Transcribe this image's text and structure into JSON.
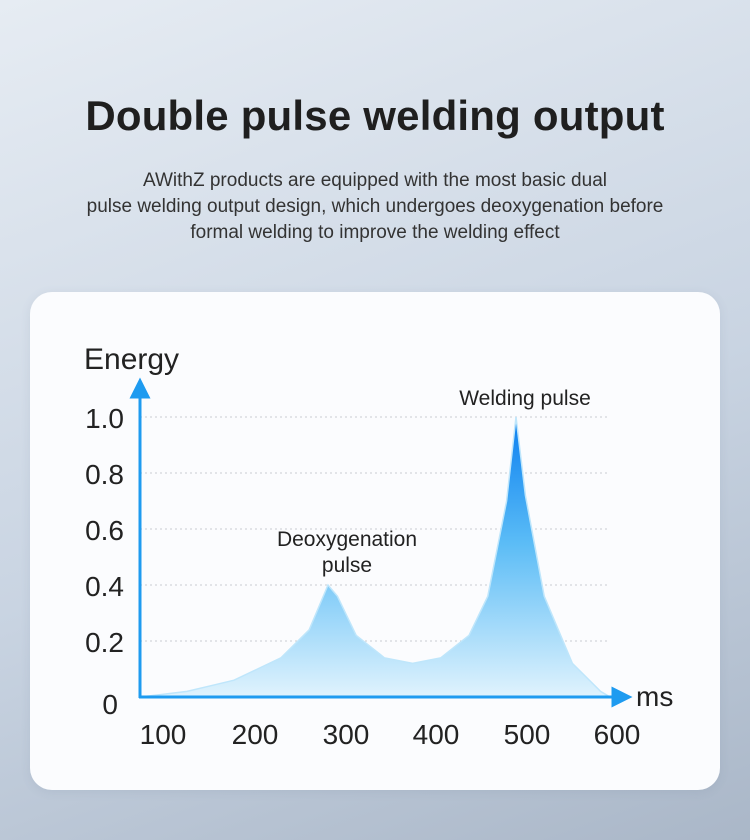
{
  "header": {
    "title": "Double pulse welding output",
    "subtitle_lines": [
      "AWithZ products are equipped with the most basic dual",
      "pulse welding output design, which undergoes deoxygenation before",
      "formal welding to improve the welding effect"
    ]
  },
  "chart_data": {
    "type": "area",
    "ylabel": "Energy",
    "xlabel": "ms",
    "xlim": [
      100,
      600
    ],
    "ylim": [
      0,
      1.0
    ],
    "x_ticks": [
      "100",
      "200",
      "300",
      "400",
      "500",
      "600"
    ],
    "y_ticks": [
      "0",
      "0.2",
      "0.4",
      "0.6",
      "0.8",
      "1.0"
    ],
    "grid": "horizontal dotted",
    "series": [
      {
        "x": [
          100,
          150,
          200,
          250,
          280,
          300,
          310,
          330,
          360,
          390,
          420,
          450,
          470,
          490,
          500,
          510,
          530,
          560,
          590,
          600
        ],
        "values": [
          0.0,
          0.02,
          0.06,
          0.14,
          0.24,
          0.4,
          0.36,
          0.22,
          0.14,
          0.12,
          0.14,
          0.22,
          0.36,
          0.7,
          1.0,
          0.72,
          0.36,
          0.12,
          0.02,
          0.0
        ]
      }
    ],
    "annotations": [
      {
        "x": 305,
        "y": 0.4,
        "lines": [
          "Deoxygenation",
          "pulse"
        ]
      },
      {
        "x": 500,
        "y": 1.0,
        "lines": [
          "Welding pulse"
        ]
      }
    ],
    "colors": {
      "axis": "#1e9bf0",
      "fill_top": "#0a7ff0",
      "fill_bottom": "#e0f3fd",
      "grid": "#c8ccd2"
    }
  }
}
